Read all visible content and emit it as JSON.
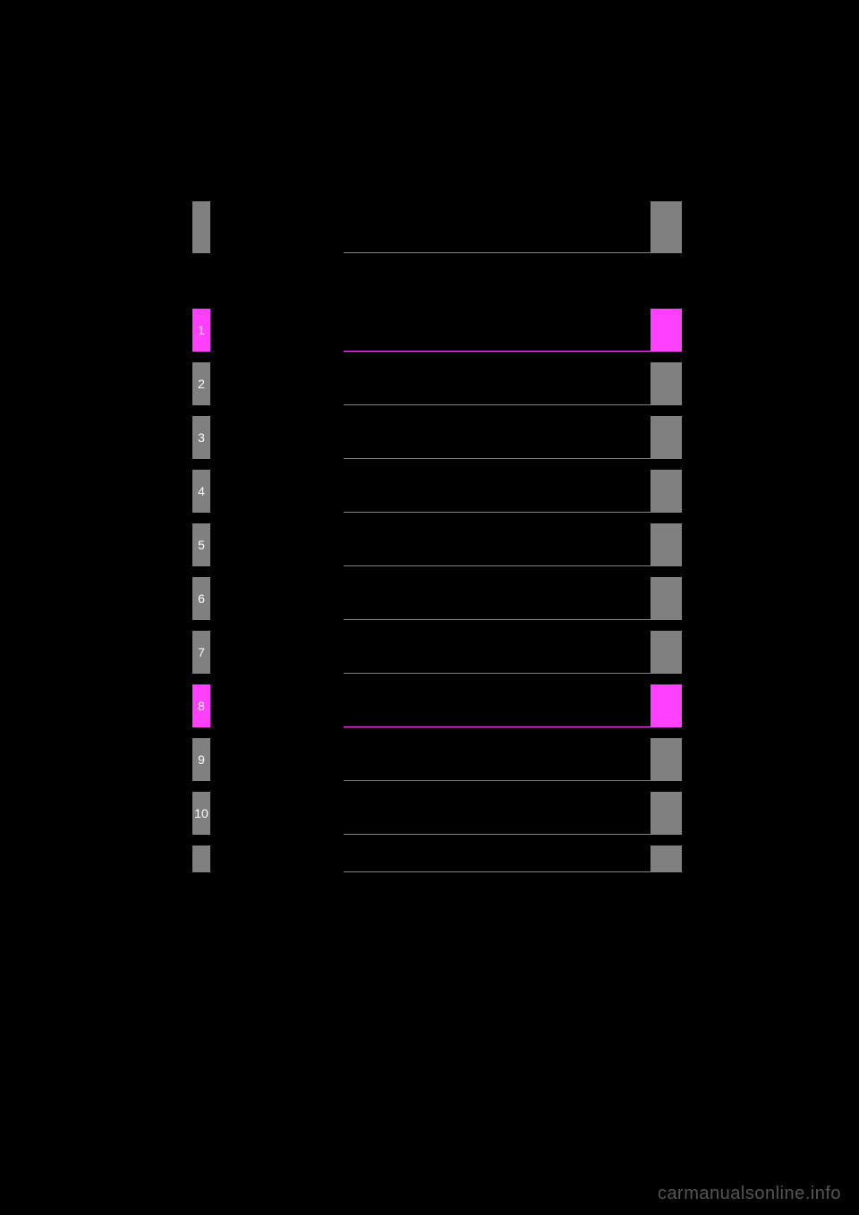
{
  "header": {
    "tab_color": "#808080",
    "end_tab_color": "#808080",
    "border_color": "#808080"
  },
  "toc": {
    "highlight_color": "#ff40ff",
    "default_color": "#808080",
    "items": [
      {
        "num": "1",
        "highlighted": true
      },
      {
        "num": "2",
        "highlighted": false
      },
      {
        "num": "3",
        "highlighted": false
      },
      {
        "num": "4",
        "highlighted": false
      },
      {
        "num": "5",
        "highlighted": false
      },
      {
        "num": "6",
        "highlighted": false
      },
      {
        "num": "7",
        "highlighted": false
      },
      {
        "num": "8",
        "highlighted": true
      },
      {
        "num": "9",
        "highlighted": false
      },
      {
        "num": "10",
        "highlighted": false
      },
      {
        "num": "",
        "highlighted": false
      }
    ]
  },
  "watermark": "carmanualsonline.info"
}
